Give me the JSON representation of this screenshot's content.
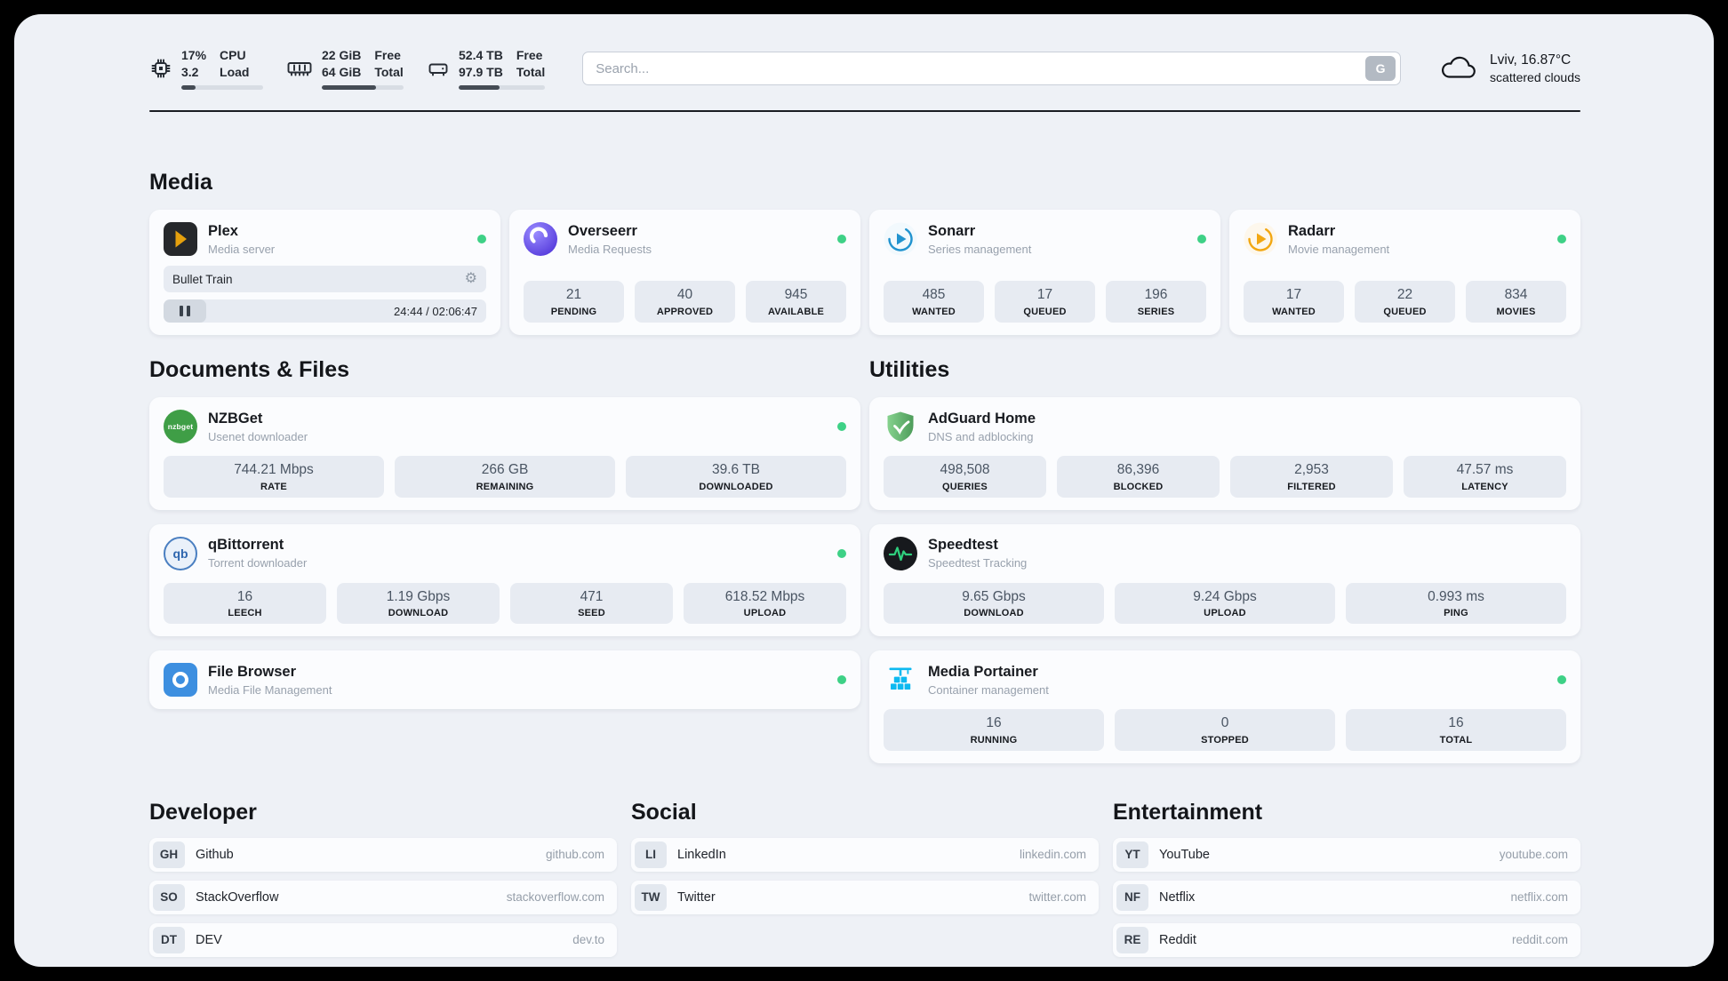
{
  "icons": {
    "gear": "⚙"
  },
  "header": {
    "cpu": {
      "top_value": "17%",
      "bottom_value": "3.2",
      "top_label": "CPU",
      "bottom_label": "Load",
      "percent": 17
    },
    "ram": {
      "top_value": "22 GiB",
      "bottom_value": "64 GiB",
      "top_label": "Free",
      "bottom_label": "Total",
      "percent": 66
    },
    "disk": {
      "top_value": "52.4 TB",
      "bottom_value": "97.9 TB",
      "top_label": "Free",
      "bottom_label": "Total",
      "percent": 47
    },
    "search": {
      "placeholder": "Search...",
      "engine_button": "G"
    },
    "weather": {
      "location": "Lviv, 16.87°C",
      "condition": "scattered clouds"
    }
  },
  "media": {
    "title": "Media",
    "plex": {
      "name": "Plex",
      "subtitle": "Media server",
      "now_playing": "Bullet Train",
      "time": "24:44 / 02:06:47"
    },
    "overseerr": {
      "name": "Overseerr",
      "subtitle": "Media Requests",
      "stats": [
        {
          "value": "21",
          "label": "PENDING"
        },
        {
          "value": "40",
          "label": "APPROVED"
        },
        {
          "value": "945",
          "label": "AVAILABLE"
        }
      ]
    },
    "sonarr": {
      "name": "Sonarr",
      "subtitle": "Series management",
      "stats": [
        {
          "value": "485",
          "label": "WANTED"
        },
        {
          "value": "17",
          "label": "QUEUED"
        },
        {
          "value": "196",
          "label": "SERIES"
        }
      ]
    },
    "radarr": {
      "name": "Radarr",
      "subtitle": "Movie management",
      "stats": [
        {
          "value": "17",
          "label": "WANTED"
        },
        {
          "value": "22",
          "label": "QUEUED"
        },
        {
          "value": "834",
          "label": "MOVIES"
        }
      ]
    }
  },
  "documents": {
    "title": "Documents & Files",
    "nzbget": {
      "name": "NZBGet",
      "subtitle": "Usenet downloader",
      "icon_text": "nzbget",
      "stats": [
        {
          "value": "744.21 Mbps",
          "label": "RATE"
        },
        {
          "value": "266 GB",
          "label": "REMAINING"
        },
        {
          "value": "39.6 TB",
          "label": "DOWNLOADED"
        }
      ]
    },
    "qbittorrent": {
      "name": "qBittorrent",
      "subtitle": "Torrent downloader",
      "icon_text": "qb",
      "stats": [
        {
          "value": "16",
          "label": "LEECH"
        },
        {
          "value": "1.19 Gbps",
          "label": "DOWNLOAD"
        },
        {
          "value": "471",
          "label": "SEED"
        },
        {
          "value": "618.52 Mbps",
          "label": "UPLOAD"
        }
      ]
    },
    "filebrowser": {
      "name": "File Browser",
      "subtitle": "Media File Management"
    }
  },
  "utilities": {
    "title": "Utilities",
    "adguard": {
      "name": "AdGuard Home",
      "subtitle": "DNS and adblocking",
      "stats": [
        {
          "value": "498,508",
          "label": "QUERIES"
        },
        {
          "value": "86,396",
          "label": "BLOCKED"
        },
        {
          "value": "2,953",
          "label": "FILTERED"
        },
        {
          "value": "47.57 ms",
          "label": "LATENCY"
        }
      ]
    },
    "speedtest": {
      "name": "Speedtest",
      "subtitle": "Speedtest Tracking",
      "stats": [
        {
          "value": "9.65 Gbps",
          "label": "DOWNLOAD"
        },
        {
          "value": "9.24 Gbps",
          "label": "UPLOAD"
        },
        {
          "value": "0.993 ms",
          "label": "PING"
        }
      ]
    },
    "portainer": {
      "name": "Media Portainer",
      "subtitle": "Container management",
      "stats": [
        {
          "value": "16",
          "label": "RUNNING"
        },
        {
          "value": "0",
          "label": "STOPPED"
        },
        {
          "value": "16",
          "label": "TOTAL"
        }
      ]
    }
  },
  "bookmarks": [
    {
      "title": "Developer",
      "items": [
        {
          "abbr": "GH",
          "name": "Github",
          "url": "github.com"
        },
        {
          "abbr": "SO",
          "name": "StackOverflow",
          "url": "stackoverflow.com"
        },
        {
          "abbr": "DT",
          "name": "DEV",
          "url": "dev.to"
        }
      ]
    },
    {
      "title": "Social",
      "items": [
        {
          "abbr": "LI",
          "name": "LinkedIn",
          "url": "linkedin.com"
        },
        {
          "abbr": "TW",
          "name": "Twitter",
          "url": "twitter.com"
        }
      ]
    },
    {
      "title": "Entertainment",
      "items": [
        {
          "abbr": "YT",
          "name": "YouTube",
          "url": "youtube.com"
        },
        {
          "abbr": "NF",
          "name": "Netflix",
          "url": "netflix.com"
        },
        {
          "abbr": "RE",
          "name": "Reddit",
          "url": "reddit.com"
        }
      ]
    }
  ]
}
